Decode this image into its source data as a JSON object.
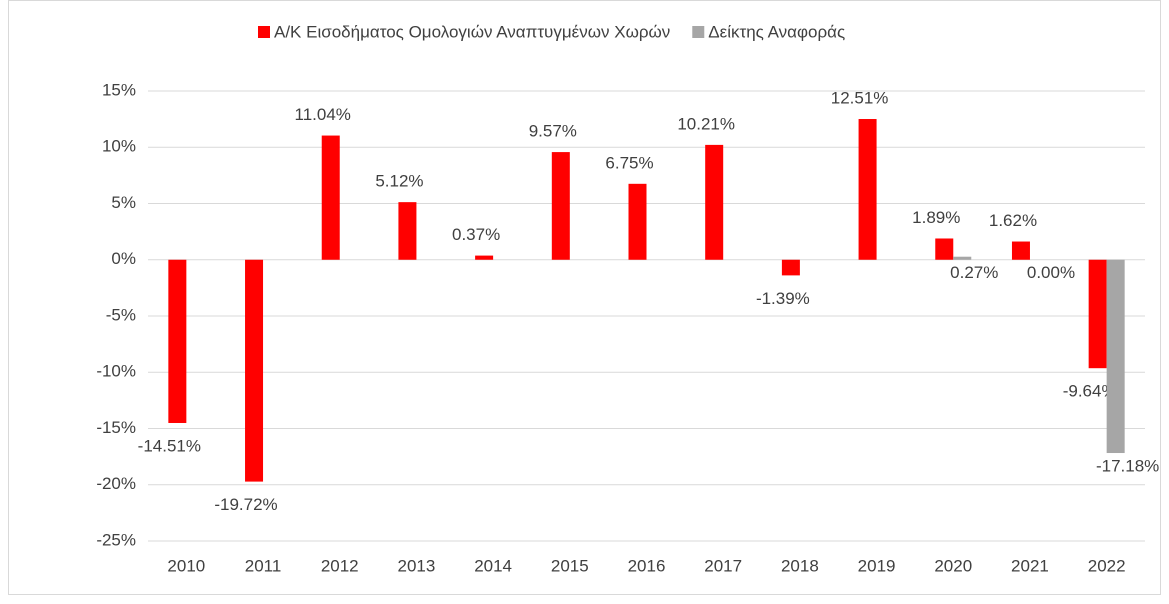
{
  "chart_data": {
    "type": "bar",
    "categories": [
      "2010",
      "2011",
      "2012",
      "2013",
      "2014",
      "2015",
      "2016",
      "2017",
      "2018",
      "2019",
      "2020",
      "2021",
      "2022"
    ],
    "series": [
      {
        "name": "Α/Κ Εισοδήματος Ομολογιών Αναπτυγμένων Χωρών",
        "color": "#ff0000",
        "values": [
          -14.51,
          -19.72,
          11.04,
          5.12,
          0.37,
          9.57,
          6.75,
          10.21,
          -1.39,
          12.51,
          1.89,
          1.62,
          -9.64
        ],
        "value_labels": [
          "-14.51%",
          "-19.72%",
          "11.04%",
          "5.12%",
          "0.37%",
          "9.57%",
          "6.75%",
          "10.21%",
          "-1.39%",
          "12.51%",
          "1.89%",
          "1.62%",
          "-9.64%"
        ]
      },
      {
        "name": "Δείκτης Αναφοράς",
        "color": "#a6a6a6",
        "values": [
          null,
          null,
          null,
          null,
          null,
          null,
          null,
          null,
          null,
          null,
          0.27,
          0.0,
          -17.18
        ],
        "value_labels": [
          null,
          null,
          null,
          null,
          null,
          null,
          null,
          null,
          null,
          null,
          "0.27%",
          "0.00%",
          "-17.18%"
        ]
      }
    ],
    "ylim": [
      -25,
      15
    ],
    "yticks": [
      {
        "value": -25,
        "label": "-25%"
      },
      {
        "value": -20,
        "label": "-20%"
      },
      {
        "value": -15,
        "label": "-15%"
      },
      {
        "value": -10,
        "label": "-10%"
      },
      {
        "value": -5,
        "label": "-5%"
      },
      {
        "value": 0,
        "label": "0%"
      },
      {
        "value": 5,
        "label": "5%"
      },
      {
        "value": 10,
        "label": "10%"
      },
      {
        "value": 15,
        "label": "15%"
      }
    ],
    "grid": true,
    "legend": "top"
  }
}
